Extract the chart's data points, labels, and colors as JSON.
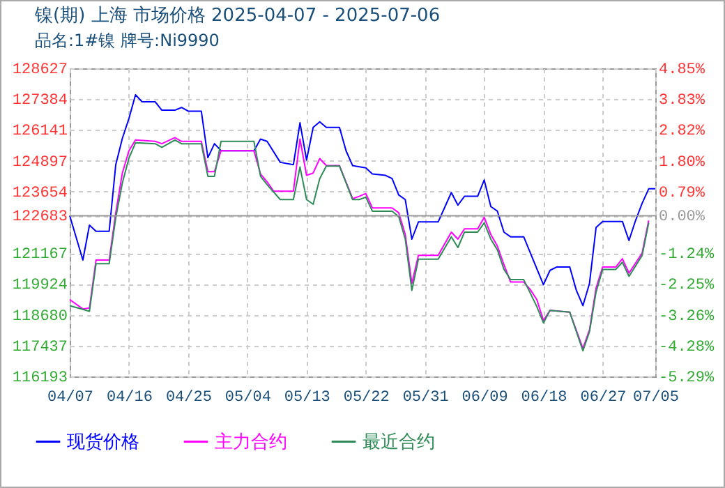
{
  "chart_data": {
    "type": "line",
    "title": "镍(期) 上海 市场价格 2025-04-07 - 2025-07-06",
    "subtitle": "品名:1#镍 牌号:Ni9990",
    "xlim": [
      "2025-04-07",
      "2025-07-05"
    ],
    "xticks": [
      {
        "value": "2025-04-07",
        "label": "04/07"
      },
      {
        "value": "2025-04-16",
        "label": "04/16"
      },
      {
        "value": "2025-04-25",
        "label": "04/25"
      },
      {
        "value": "2025-05-04",
        "label": "05/04"
      },
      {
        "value": "2025-05-13",
        "label": "05/13"
      },
      {
        "value": "2025-05-22",
        "label": "05/22"
      },
      {
        "value": "2025-05-31",
        "label": "05/31"
      },
      {
        "value": "2025-06-09",
        "label": "06/09"
      },
      {
        "value": "2025-06-18",
        "label": "06/18"
      },
      {
        "value": "2025-06-27",
        "label": "06/27"
      },
      {
        "value": "2025-07-05",
        "label": "07/05"
      }
    ],
    "ylim": [
      116193,
      128627
    ],
    "yticks": [
      116193,
      117437,
      118680,
      119924,
      121167,
      122683,
      123654,
      124897,
      126141,
      127384,
      128627
    ],
    "y2lim": [
      -5.29,
      4.85
    ],
    "y2ticks": [
      {
        "value": -5.29,
        "label": "-5.29%"
      },
      {
        "value": -4.28,
        "label": "-4.28%"
      },
      {
        "value": -3.26,
        "label": "-3.26%"
      },
      {
        "value": -2.25,
        "label": "-2.25%"
      },
      {
        "value": -1.24,
        "label": "-1.24%"
      },
      {
        "value": 0,
        "label": "0.00%"
      },
      {
        "value": 0.79,
        "label": "0.79%"
      },
      {
        "value": 1.8,
        "label": "1.80%"
      },
      {
        "value": 2.82,
        "label": "2.82%"
      },
      {
        "value": 3.83,
        "label": "3.83%"
      },
      {
        "value": 4.85,
        "label": "4.85%"
      }
    ],
    "ref_lines": [
      {
        "axis": "y2",
        "value": 0,
        "color": "#999999"
      }
    ],
    "grid": true,
    "legend": "bottom",
    "series": [
      {
        "name": "现货价格",
        "color": "#0000ff",
        "x": [
          "2025-04-07",
          "2025-04-09",
          "2025-04-10",
          "2025-04-11",
          "2025-04-13",
          "2025-04-14",
          "2025-04-15",
          "2025-04-16",
          "2025-04-17",
          "2025-04-18",
          "2025-04-20",
          "2025-04-21",
          "2025-04-23",
          "2025-04-24",
          "2025-04-25",
          "2025-04-27",
          "2025-04-28",
          "2025-04-29",
          "2025-04-30",
          "2025-05-05",
          "2025-05-06",
          "2025-05-07",
          "2025-05-09",
          "2025-05-11",
          "2025-05-12",
          "2025-05-13",
          "2025-05-14",
          "2025-05-15",
          "2025-05-16",
          "2025-05-18",
          "2025-05-19",
          "2025-05-20",
          "2025-05-22",
          "2025-05-23",
          "2025-05-25",
          "2025-05-26",
          "2025-05-27",
          "2025-05-28",
          "2025-05-29",
          "2025-05-30",
          "2025-06-02",
          "2025-06-04",
          "2025-06-05",
          "2025-06-06",
          "2025-06-08",
          "2025-06-09",
          "2025-06-10",
          "2025-06-11",
          "2025-06-12",
          "2025-06-13",
          "2025-06-15",
          "2025-06-18",
          "2025-06-19",
          "2025-06-20",
          "2025-06-22",
          "2025-06-23",
          "2025-06-24",
          "2025-06-25",
          "2025-06-26",
          "2025-06-27",
          "2025-06-30",
          "2025-07-01",
          "2025-07-02",
          "2025-07-03",
          "2025-07-04",
          "2025-07-05"
        ],
        "values": [
          122683,
          120890,
          122298,
          122054,
          122054,
          124740,
          125800,
          126600,
          127557,
          127275,
          127275,
          126937,
          126937,
          127050,
          126900,
          126900,
          125021,
          125585,
          125303,
          125303,
          125773,
          125680,
          124833,
          124740,
          126430,
          124928,
          126242,
          126467,
          126242,
          126242,
          125300,
          124700,
          124609,
          124364,
          124308,
          124176,
          123519,
          123331,
          121735,
          122430,
          122430,
          123613,
          123106,
          123463,
          123463,
          124120,
          123050,
          122862,
          122016,
          121829,
          121829,
          119894,
          120476,
          120608,
          120608,
          119669,
          119049,
          119951,
          122204,
          122448,
          122448,
          121679,
          122486,
          123181,
          123764,
          123764
        ]
      },
      {
        "name": "主力合约",
        "color": "#ff00ff",
        "x": [
          "2025-04-07",
          "2025-04-09",
          "2025-04-10",
          "2025-04-11",
          "2025-04-13",
          "2025-04-14",
          "2025-04-15",
          "2025-04-16",
          "2025-04-17",
          "2025-04-20",
          "2025-04-21",
          "2025-04-23",
          "2025-04-24",
          "2025-04-27",
          "2025-04-28",
          "2025-04-29",
          "2025-04-30",
          "2025-05-05",
          "2025-05-06",
          "2025-05-07",
          "2025-05-08",
          "2025-05-11",
          "2025-05-12",
          "2025-05-13",
          "2025-05-14",
          "2025-05-15",
          "2025-05-16",
          "2025-05-18",
          "2025-05-20",
          "2025-05-21",
          "2025-05-22",
          "2025-05-23",
          "2025-05-26",
          "2025-05-27",
          "2025-05-28",
          "2025-05-29",
          "2025-05-30",
          "2025-06-02",
          "2025-06-04",
          "2025-06-05",
          "2025-06-06",
          "2025-06-08",
          "2025-06-09",
          "2025-06-10",
          "2025-06-11",
          "2025-06-12",
          "2025-06-13",
          "2025-06-15",
          "2025-06-16",
          "2025-06-17",
          "2025-06-18",
          "2025-06-19",
          "2025-06-22",
          "2025-06-24",
          "2025-06-25",
          "2025-06-26",
          "2025-06-27",
          "2025-06-29",
          "2025-06-30",
          "2025-07-01",
          "2025-07-03",
          "2025-07-04"
        ],
        "values": [
          119293,
          118918,
          118955,
          120890,
          120890,
          122800,
          124400,
          125300,
          125735,
          125679,
          125585,
          125829,
          125679,
          125679,
          124458,
          124458,
          125303,
          125303,
          124364,
          124045,
          123669,
          123669,
          125773,
          124308,
          124402,
          124984,
          124702,
          124702,
          123368,
          123463,
          123575,
          122993,
          122993,
          122800,
          121923,
          119951,
          121078,
          121078,
          122016,
          121735,
          122148,
          122148,
          122617,
          121923,
          121453,
          120702,
          120007,
          120007,
          119700,
          119293,
          118448,
          118861,
          118786,
          117321,
          118073,
          119763,
          120608,
          120608,
          120946,
          120364,
          121171,
          122486
        ]
      },
      {
        "name": "最近合约",
        "color": "#2e8b57",
        "x": [
          "2025-04-07",
          "2025-04-09",
          "2025-04-10",
          "2025-04-11",
          "2025-04-13",
          "2025-04-14",
          "2025-04-15",
          "2025-04-16",
          "2025-04-17",
          "2025-04-20",
          "2025-04-21",
          "2025-04-23",
          "2025-04-24",
          "2025-04-27",
          "2025-04-28",
          "2025-04-29",
          "2025-04-30",
          "2025-05-05",
          "2025-05-06",
          "2025-05-07",
          "2025-05-09",
          "2025-05-11",
          "2025-05-12",
          "2025-05-13",
          "2025-05-14",
          "2025-05-15",
          "2025-05-16",
          "2025-05-18",
          "2025-05-20",
          "2025-05-21",
          "2025-05-22",
          "2025-05-23",
          "2025-05-26",
          "2025-05-27",
          "2025-05-28",
          "2025-05-29",
          "2025-05-30",
          "2025-06-02",
          "2025-06-04",
          "2025-06-05",
          "2025-06-06",
          "2025-06-08",
          "2025-06-09",
          "2025-06-10",
          "2025-06-11",
          "2025-06-12",
          "2025-06-13",
          "2025-06-15",
          "2025-06-17",
          "2025-06-18",
          "2025-06-19",
          "2025-06-22",
          "2025-06-24",
          "2025-06-25",
          "2025-06-26",
          "2025-06-27",
          "2025-06-29",
          "2025-06-30",
          "2025-07-01",
          "2025-07-03",
          "2025-07-04"
        ],
        "values": [
          119049,
          118900,
          118824,
          120740,
          120740,
          122600,
          124000,
          125000,
          125623,
          125585,
          125435,
          125735,
          125585,
          125585,
          124270,
          124270,
          125679,
          125679,
          124270,
          123932,
          123331,
          123331,
          124646,
          123331,
          123143,
          124176,
          124683,
          124683,
          123331,
          123331,
          123425,
          122862,
          122862,
          122650,
          121735,
          119669,
          120927,
          120927,
          121829,
          121397,
          122016,
          122016,
          122392,
          121735,
          121303,
          120514,
          120101,
          120101,
          119011,
          118354,
          118861,
          118786,
          117227,
          118000,
          119600,
          120514,
          120514,
          120800,
          120232,
          121078,
          122392
        ]
      }
    ]
  }
}
